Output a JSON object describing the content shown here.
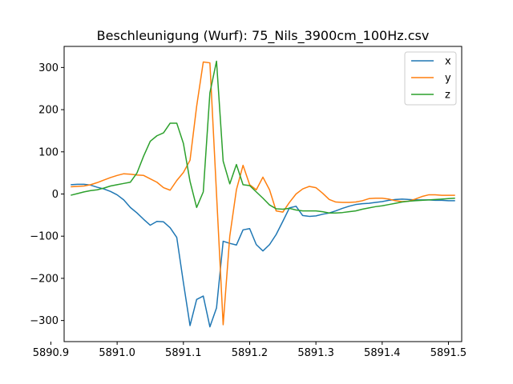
{
  "chart_data": {
    "type": "line",
    "title": "Beschleunigung (Wurf): 75_Nils_3900cm_100Hz.csv",
    "xlabel": "",
    "ylabel": "",
    "xlim": [
      5890.92,
      5891.52
    ],
    "ylim": [
      -350,
      350
    ],
    "xticks": [
      5890.9,
      5891.0,
      5891.1,
      5891.2,
      5891.3,
      5891.4,
      5891.5
    ],
    "xtick_labels": [
      "5890.9",
      "5891.0",
      "5891.1",
      "5891.2",
      "5891.3",
      "5891.4",
      "5891.5"
    ],
    "yticks": [
      -300,
      -200,
      -100,
      0,
      100,
      200,
      300
    ],
    "ytick_labels": [
      "−300",
      "−200",
      "−100",
      "0",
      "100",
      "200",
      "300"
    ],
    "grid": false,
    "legend_position": "top-right",
    "x": [
      5890.93,
      5890.94,
      5890.95,
      5890.96,
      5890.97,
      5890.98,
      5890.99,
      5891.0,
      5891.01,
      5891.02,
      5891.03,
      5891.04,
      5891.05,
      5891.06,
      5891.07,
      5891.08,
      5891.09,
      5891.1,
      5891.11,
      5891.12,
      5891.13,
      5891.14,
      5891.15,
      5891.16,
      5891.17,
      5891.18,
      5891.19,
      5891.2,
      5891.21,
      5891.22,
      5891.23,
      5891.24,
      5891.25,
      5891.26,
      5891.27,
      5891.28,
      5891.29,
      5891.3,
      5891.31,
      5891.32,
      5891.33,
      5891.34,
      5891.35,
      5891.36,
      5891.37,
      5891.38,
      5891.39,
      5891.4,
      5891.41,
      5891.42,
      5891.43,
      5891.44,
      5891.45,
      5891.46,
      5891.47,
      5891.48,
      5891.49,
      5891.5,
      5891.51
    ],
    "series": [
      {
        "name": "x",
        "color": "#1f77b4",
        "values": [
          22,
          23,
          23,
          21,
          16,
          12,
          6,
          -2,
          -14,
          -32,
          -45,
          -60,
          -74,
          -65,
          -66,
          -80,
          -103,
          -210,
          -312,
          -250,
          -242,
          -315,
          -270,
          -112,
          -117,
          -121,
          -85,
          -82,
          -120,
          -135,
          -120,
          -96,
          -65,
          -33,
          -29,
          -51,
          -53,
          -52,
          -48,
          -45,
          -40,
          -34,
          -29,
          -25,
          -23,
          -22,
          -20,
          -18,
          -15,
          -13,
          -12,
          -13,
          -14,
          -14,
          -14,
          -15,
          -15,
          -16,
          -16
        ]
      },
      {
        "name": "y",
        "color": "#ff7f0e",
        "values": [
          17,
          18,
          19,
          22,
          27,
          33,
          39,
          44,
          48,
          47,
          45,
          44,
          36,
          28,
          15,
          9,
          32,
          51,
          80,
          208,
          313,
          311,
          0,
          -310,
          -100,
          10,
          68,
          22,
          10,
          40,
          10,
          -40,
          -43,
          -20,
          0,
          12,
          18,
          15,
          2,
          -13,
          -19,
          -20,
          -20,
          -19,
          -16,
          -11,
          -10,
          -10,
          -12,
          -16,
          -18,
          -17,
          -12,
          -6,
          -2,
          -2,
          -3,
          -3,
          -3
        ]
      },
      {
        "name": "z",
        "color": "#2ca02c",
        "values": [
          -3,
          1,
          5,
          8,
          10,
          14,
          19,
          22,
          25,
          28,
          50,
          90,
          125,
          138,
          145,
          168,
          168,
          120,
          30,
          -32,
          5,
          240,
          315,
          78,
          24,
          70,
          22,
          20,
          5,
          -10,
          -26,
          -35,
          -36,
          -34,
          -38,
          -40,
          -40,
          -40,
          -42,
          -45,
          -45,
          -44,
          -42,
          -40,
          -36,
          -33,
          -30,
          -28,
          -25,
          -22,
          -19,
          -17,
          -16,
          -15,
          -14,
          -13,
          -12,
          -11,
          -10
        ]
      }
    ]
  }
}
